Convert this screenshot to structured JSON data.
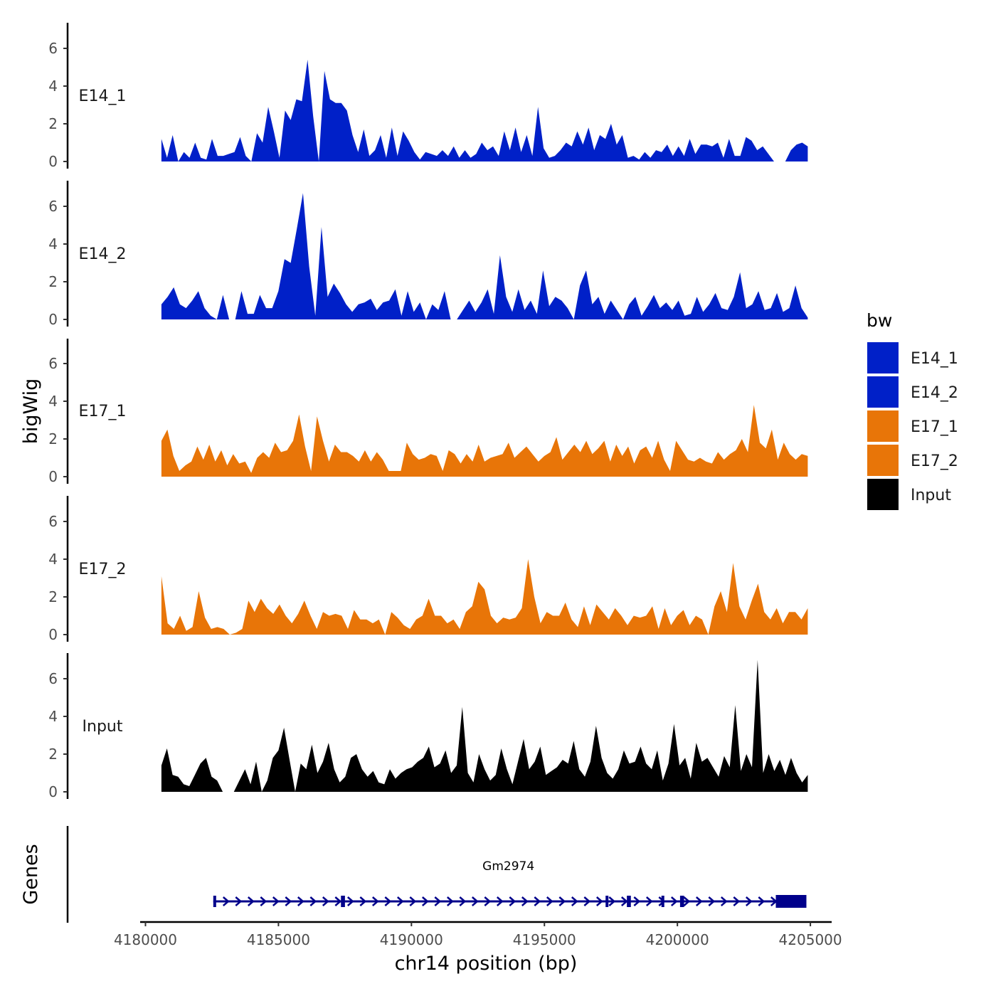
{
  "chart_data": {
    "type": "area",
    "title": "",
    "xlabel": "chr14 position (bp)",
    "ylabel": "bigWig",
    "genes_label": "Genes",
    "xlim": [
      4179800,
      4205800
    ],
    "ylim": [
      0,
      7.5
    ],
    "x_ticks": [
      4180000,
      4185000,
      4190000,
      4195000,
      4200000,
      4205000
    ],
    "x_tick_labels": [
      "4180000",
      "4185000",
      "4190000",
      "4195000",
      "4200000",
      "4205000"
    ],
    "y_ticks": [
      0,
      2,
      4,
      6
    ],
    "y_tick_labels": [
      "0",
      "2",
      "4",
      "6"
    ],
    "legend": {
      "title": "bw",
      "position": "right",
      "entries": [
        {
          "label": "E14_1",
          "color": "#0020c8"
        },
        {
          "label": "E14_2",
          "color": "#0020c8"
        },
        {
          "label": "E17_1",
          "color": "#e87508"
        },
        {
          "label": "E17_2",
          "color": "#e87508"
        },
        {
          "label": "Input",
          "color": "#000000"
        }
      ]
    },
    "series": [
      {
        "name": "E14_1",
        "color": "#0020c8",
        "x_start": 4180600,
        "x_end": 4204900,
        "values": [
          1.2,
          0.2,
          1.4,
          2.0,
          0.5,
          0.2,
          1.0,
          0.2,
          0.1,
          1.2,
          0.3,
          0.3,
          0.4,
          0.5,
          1.3,
          0.3,
          0.0,
          1.5,
          1.0,
          2.9,
          1.6,
          0.2,
          2.7,
          2.2,
          3.3,
          3.2,
          5.4,
          2.4,
          0.0,
          4.8,
          3.3,
          3.1,
          3.1,
          2.7,
          1.4,
          0.5,
          1.7,
          0.3,
          0.6,
          1.4,
          0.2,
          1.8,
          0.3,
          1.6,
          1.1,
          0.5,
          0.1,
          0.5,
          0.4,
          0.3,
          0.6,
          0.3,
          0.8,
          0.2,
          0.6,
          0.2,
          0.4,
          1.0,
          0.6,
          0.8,
          0.3,
          1.6,
          0.6,
          1.8,
          0.5,
          1.4,
          0.3,
          2.9,
          0.7,
          0.2,
          0.3,
          0.6,
          1.0,
          0.8,
          1.6,
          0.9,
          1.8,
          0.6,
          1.4,
          1.2,
          2.0,
          0.9,
          1.4,
          0.2,
          0.3,
          0.1,
          0.5,
          0.2,
          0.6,
          0.5,
          0.9,
          0.3,
          0.8,
          0.3,
          1.2,
          0.4,
          0.9,
          0.9,
          0.8,
          1.0,
          0.2,
          1.2,
          0.3,
          0.3,
          1.3,
          1.1,
          0.6,
          0.8,
          0.4,
          0.0,
          0.0,
          1.0,
          0.6,
          0.9,
          1.0,
          0.8
        ],
        "gaps": [
          [
            4181200,
            4181300
          ],
          [
            4204000,
            4204150
          ]
        ]
      },
      {
        "name": "E14_2",
        "color": "#0020c8",
        "x_start": 4180600,
        "x_end": 4204900,
        "values": [
          0.8,
          1.2,
          1.7,
          0.8,
          0.6,
          1.0,
          1.5,
          0.6,
          0.2,
          0.0,
          1.3,
          0.0,
          0.0,
          1.5,
          0.3,
          0.3,
          1.3,
          0.6,
          0.6,
          1.5,
          3.2,
          3.0,
          4.8,
          6.7,
          2.8,
          0.2,
          4.9,
          1.2,
          1.9,
          1.4,
          0.8,
          0.4,
          0.8,
          0.9,
          1.1,
          0.5,
          0.9,
          1.0,
          1.6,
          0.2,
          1.5,
          0.4,
          0.9,
          0.8,
          0.8,
          0.5,
          1.5,
          0.0,
          0.0,
          0.5,
          1.0,
          0.4,
          0.9,
          1.6,
          0.3,
          3.4,
          1.2,
          0.4,
          1.6,
          0.5,
          1.0,
          0.3,
          2.6,
          0.7,
          1.2,
          1.0,
          0.6,
          0.1,
          1.8,
          2.6,
          0.8,
          1.2,
          0.3,
          1.0,
          0.5,
          1.0,
          0.8,
          1.2,
          0.2,
          0.7,
          1.3,
          0.6,
          0.9,
          0.5,
          1.0,
          0.2,
          0.3,
          1.2,
          0.4,
          0.8,
          1.4,
          0.6,
          0.5,
          1.2,
          2.5,
          0.6,
          0.8,
          1.5,
          0.5,
          0.6,
          1.4,
          0.4,
          0.6,
          1.8,
          0.6,
          0.1
        ],
        "gaps": [
          [
            4182000,
            4182150
          ],
          [
            4182600,
            4182800
          ],
          [
            4190450,
            4190650
          ],
          [
            4196100,
            4196300
          ],
          [
            4197850,
            4198050
          ]
        ]
      },
      {
        "name": "E17_1",
        "color": "#e87508",
        "x_start": 4180600,
        "x_end": 4204900,
        "values": [
          1.9,
          2.5,
          1.1,
          0.3,
          0.6,
          0.8,
          1.6,
          0.9,
          1.7,
          0.8,
          1.4,
          0.6,
          1.2,
          0.7,
          0.8,
          0.2,
          1.0,
          1.3,
          1.0,
          1.8,
          1.3,
          1.4,
          1.9,
          3.3,
          1.6,
          0.3,
          3.2,
          1.9,
          0.8,
          1.7,
          1.3,
          1.3,
          1.1,
          0.8,
          1.4,
          0.8,
          1.3,
          0.9,
          0.3,
          0.3,
          0.3,
          1.8,
          1.2,
          0.9,
          1.0,
          1.2,
          1.1,
          0.3,
          1.4,
          1.2,
          0.7,
          1.2,
          0.8,
          1.7,
          0.8,
          1.0,
          1.1,
          1.2,
          1.8,
          1.0,
          1.3,
          1.6,
          1.2,
          0.8,
          1.1,
          1.3,
          2.1,
          0.9,
          1.3,
          1.7,
          1.3,
          1.9,
          1.2,
          1.5,
          1.9,
          0.8,
          1.7,
          1.1,
          1.6,
          0.7,
          1.4,
          1.6,
          1.0,
          1.9,
          0.9,
          0.3,
          1.9,
          1.4,
          0.9,
          0.8,
          1.0,
          0.8,
          0.7,
          1.3,
          0.9,
          1.2,
          1.4,
          2.0,
          1.3,
          3.8,
          1.8,
          1.5,
          2.5,
          0.9,
          1.8,
          1.2,
          0.9,
          1.2,
          1.1
        ],
        "gaps": []
      },
      {
        "name": "E17_2",
        "color": "#e87508",
        "x_start": 4180600,
        "x_end": 4204900,
        "values": [
          3.1,
          0.6,
          0.3,
          1.0,
          0.2,
          0.4,
          2.3,
          0.9,
          0.3,
          0.4,
          0.3,
          0.0,
          0.1,
          0.3,
          1.8,
          1.2,
          1.9,
          1.4,
          1.1,
          1.6,
          1.0,
          0.6,
          1.1,
          1.8,
          1.0,
          0.3,
          1.2,
          1.0,
          1.1,
          1.0,
          0.3,
          1.3,
          0.8,
          0.8,
          0.6,
          0.8,
          0.2,
          1.2,
          0.9,
          0.5,
          0.3,
          0.8,
          1.0,
          1.9,
          1.0,
          1.0,
          0.6,
          0.8,
          0.3,
          1.2,
          1.5,
          2.8,
          2.4,
          1.0,
          0.6,
          0.9,
          0.8,
          0.9,
          1.4,
          4.0,
          2.0,
          0.6,
          1.2,
          1.0,
          1.0,
          1.7,
          0.8,
          0.4,
          1.5,
          0.5,
          1.6,
          1.2,
          0.8,
          1.4,
          1.0,
          0.5,
          1.0,
          0.9,
          1.0,
          1.5,
          0.3,
          1.4,
          0.5,
          1.0,
          1.3,
          0.5,
          1.0,
          0.8,
          0.0,
          1.5,
          2.3,
          1.2,
          3.8,
          1.5,
          0.8,
          1.8,
          2.7,
          1.2,
          0.8,
          1.4,
          0.6,
          1.2,
          1.2,
          0.8,
          1.4
        ],
        "gaps": [
          [
            4182250,
            4182350
          ],
          [
            4182950,
            4183200
          ],
          [
            4187150,
            4187250
          ],
          [
            4189000,
            4189150
          ]
        ]
      },
      {
        "name": "Input",
        "color": "#000000",
        "x_start": 4180600,
        "x_end": 4204900,
        "values": [
          1.4,
          2.3,
          0.9,
          0.8,
          0.4,
          0.3,
          0.9,
          1.5,
          1.8,
          0.8,
          0.6,
          0.0,
          0.5,
          1.3,
          0.6,
          1.2,
          0.4,
          1.6,
          0.0,
          0.6,
          1.8,
          2.2,
          3.4,
          1.7,
          1.0,
          1.5,
          1.2,
          2.5,
          1.0,
          1.6,
          2.6,
          1.2,
          0.5,
          0.8,
          1.8,
          2.0,
          1.2,
          0.8,
          1.1,
          0.5,
          0.4,
          1.2,
          0.7,
          1.0,
          1.2,
          1.3,
          1.6,
          1.8,
          2.4,
          1.3,
          1.5,
          2.2,
          1.0,
          1.4,
          4.5,
          1.0,
          0.5,
          2.0,
          1.2,
          0.6,
          0.9,
          2.3,
          1.2,
          0.4,
          1.6,
          2.8,
          1.2,
          1.6,
          2.4,
          0.9,
          1.1,
          1.3,
          1.7,
          1.5,
          2.7,
          1.2,
          0.8,
          1.6,
          3.5,
          1.8,
          1.0,
          0.7,
          1.2,
          2.2,
          1.5,
          1.6,
          2.4,
          1.5,
          1.2,
          2.2,
          0.6,
          1.5,
          3.6,
          1.4,
          1.8,
          0.7,
          2.6,
          1.6,
          1.8,
          1.3,
          0.8,
          1.9,
          1.3,
          4.6,
          1.1,
          2.0,
          1.3,
          7.0,
          1.0,
          2.0,
          1.1,
          1.7,
          0.9,
          1.8,
          1.0,
          0.5,
          0.9
        ],
        "gaps": [
          [
            4183000,
            4183350
          ],
          [
            4185550,
            4185700
          ]
        ]
      }
    ],
    "genes": [
      {
        "name": "Gm2974",
        "color": "#00008b",
        "start": 4182550,
        "end": 4204850,
        "strand": "+",
        "exons": [
          [
            4182550,
            4182650
          ],
          [
            4187350,
            4187500
          ],
          [
            4197300,
            4197400
          ],
          [
            4198100,
            4198250
          ],
          [
            4199400,
            4199500
          ],
          [
            4200100,
            4200250
          ],
          [
            4203700,
            4204850
          ]
        ]
      }
    ]
  }
}
